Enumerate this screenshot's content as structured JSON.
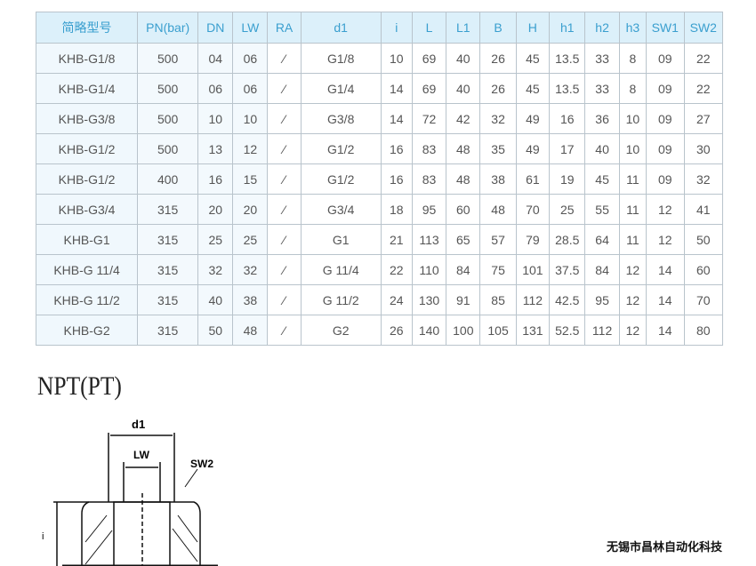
{
  "table": {
    "headers": [
      "简略型号",
      "PN(bar)",
      "DN",
      "LW",
      "RA",
      "d1",
      "i",
      "L",
      "L1",
      "B",
      "H",
      "h1",
      "h2",
      "h3",
      "SW1",
      "SW2"
    ],
    "rows": [
      [
        "KHB-G1/8",
        "500",
        "04",
        "06",
        "⁄",
        "G1/8",
        "10",
        "69",
        "40",
        "26",
        "45",
        "13.5",
        "33",
        "8",
        "09",
        "22"
      ],
      [
        "KHB-G1/4",
        "500",
        "06",
        "06",
        "⁄",
        "G1/4",
        "14",
        "69",
        "40",
        "26",
        "45",
        "13.5",
        "33",
        "8",
        "09",
        "22"
      ],
      [
        "KHB-G3/8",
        "500",
        "10",
        "10",
        "⁄",
        "G3/8",
        "14",
        "72",
        "42",
        "32",
        "49",
        "16",
        "36",
        "10",
        "09",
        "27"
      ],
      [
        "KHB-G1/2",
        "500",
        "13",
        "12",
        "⁄",
        "G1/2",
        "16",
        "83",
        "48",
        "35",
        "49",
        "17",
        "40",
        "10",
        "09",
        "30"
      ],
      [
        "KHB-G1/2",
        "400",
        "16",
        "15",
        "⁄",
        "G1/2",
        "16",
        "83",
        "48",
        "38",
        "61",
        "19",
        "45",
        "11",
        "09",
        "32"
      ],
      [
        "KHB-G3/4",
        "315",
        "20",
        "20",
        "⁄",
        "G3/4",
        "18",
        "95",
        "60",
        "48",
        "70",
        "25",
        "55",
        "11",
        "12",
        "41"
      ],
      [
        "KHB-G1",
        "315",
        "25",
        "25",
        "⁄",
        "G1",
        "21",
        "113",
        "65",
        "57",
        "79",
        "28.5",
        "64",
        "11",
        "12",
        "50"
      ],
      [
        "KHB-G 11/4",
        "315",
        "32",
        "32",
        "⁄",
        "G 11/4",
        "22",
        "110",
        "84",
        "75",
        "101",
        "37.5",
        "84",
        "12",
        "14",
        "60"
      ],
      [
        "KHB-G 11/2",
        "315",
        "40",
        "38",
        "⁄",
        "G 11/2",
        "24",
        "130",
        "91",
        "85",
        "112",
        "42.5",
        "95",
        "12",
        "14",
        "70"
      ],
      [
        "KHB-G2",
        "315",
        "50",
        "48",
        "⁄",
        "G2",
        "26",
        "140",
        "100",
        "105",
        "131",
        "52.5",
        "112",
        "12",
        "14",
        "80"
      ]
    ]
  },
  "section_title": "NPT(PT)",
  "diagram": {
    "d1": "d1",
    "lw": "LW",
    "sw2": "SW2",
    "i": "i"
  },
  "company": "无锡市昌林自动化科技"
}
